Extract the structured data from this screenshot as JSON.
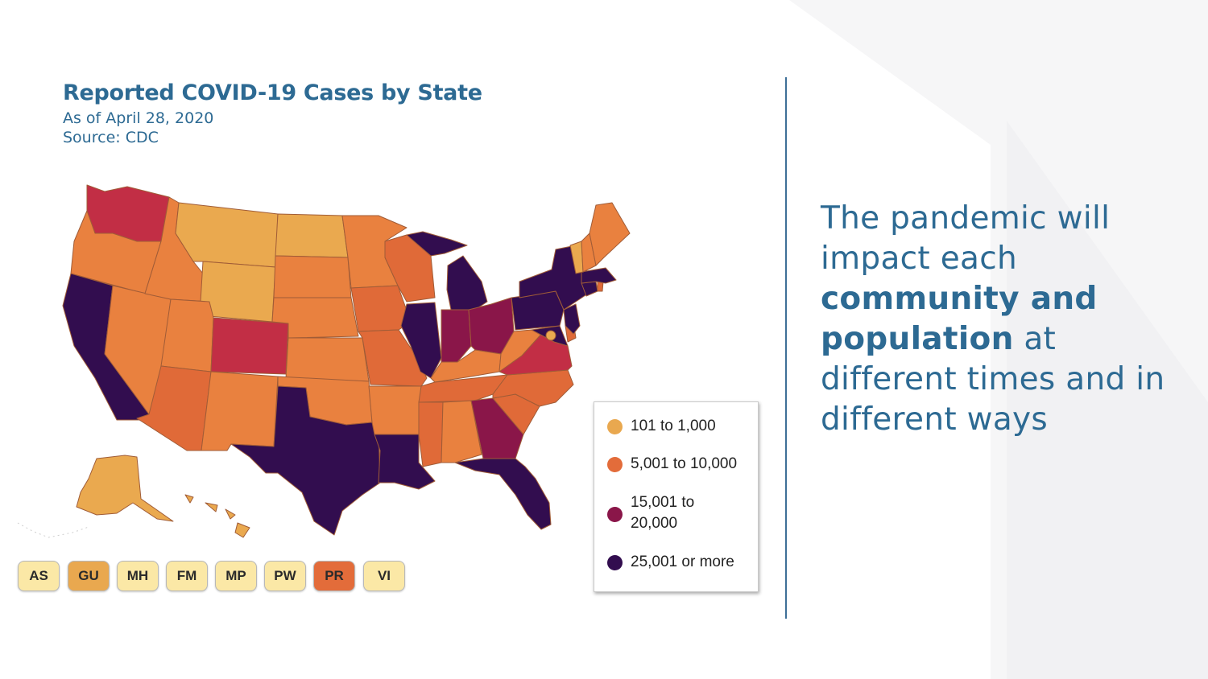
{
  "header": {
    "title": "Reported COVID-19 Cases by State",
    "date_line": "As of April 28, 2020",
    "source_line": "Source: CDC"
  },
  "legend": {
    "items": [
      {
        "label": "101 to 1,000",
        "color": "#e9a84f"
      },
      {
        "label": "5,001 to 10,000",
        "color": "#e36c3a"
      },
      {
        "label": "15,001 to 20,000",
        "color": "#8a1649"
      },
      {
        "label": "25,001 or more",
        "color": "#320d4f"
      }
    ]
  },
  "territories": [
    {
      "code": "AS",
      "color": "#fbe8a6"
    },
    {
      "code": "GU",
      "color": "#e9a84f"
    },
    {
      "code": "MH",
      "color": "#fbe8a6"
    },
    {
      "code": "FM",
      "color": "#fbe8a6"
    },
    {
      "code": "MP",
      "color": "#fbe8a6"
    },
    {
      "code": "PW",
      "color": "#fbe8a6"
    },
    {
      "code": "PR",
      "color": "#e36c3a"
    },
    {
      "code": "VI",
      "color": "#fbe8a6"
    }
  ],
  "side": {
    "line_a": "The pandemic will impact each ",
    "bold": "community and population",
    "line_b": " at different times and in different ways"
  },
  "palette": {
    "c1": "#eaa94f",
    "c2": "#e9813f",
    "c3": "#e06a38",
    "c4": "#c22e45",
    "c5": "#8a1649",
    "c6": "#320d4f",
    "accent": "#2d6a93"
  }
}
